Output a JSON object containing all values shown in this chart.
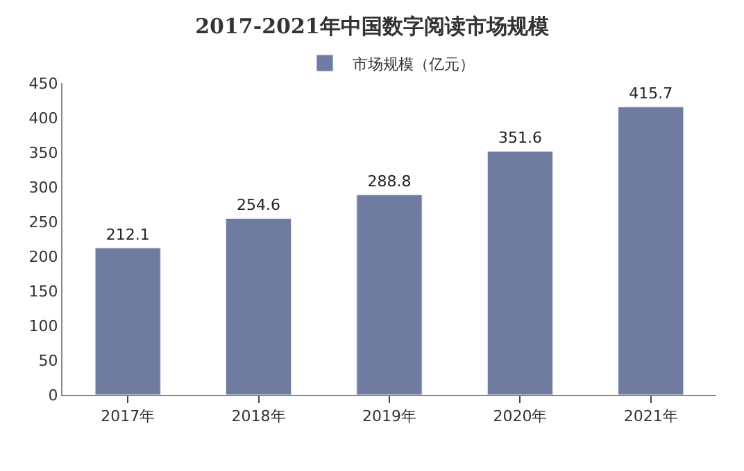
{
  "chart_data": {
    "type": "bar",
    "title": "2017-2021年中国数字阅读市场规模",
    "categories": [
      "2017年",
      "2018年",
      "2019年",
      "2020年",
      "2021年"
    ],
    "series": [
      {
        "name": "市场规模（亿元）",
        "color": "#6f7ca0",
        "values": [
          212.1,
          254.6,
          288.8,
          351.6,
          415.7
        ]
      }
    ],
    "ylim": [
      0,
      450
    ],
    "yticks": [
      0,
      50,
      100,
      150,
      200,
      250,
      300,
      350,
      400,
      450
    ],
    "data_labels": true,
    "legend": "top",
    "grid": false
  }
}
